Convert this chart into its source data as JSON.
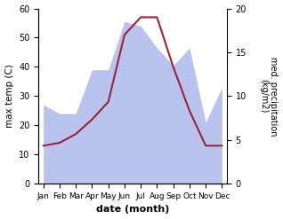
{
  "months": [
    "Jan",
    "Feb",
    "Mar",
    "Apr",
    "May",
    "Jun",
    "Jul",
    "Aug",
    "Sep",
    "Oct",
    "Nov",
    "Dec"
  ],
  "temperature": [
    13,
    14,
    17,
    22,
    28,
    51,
    57,
    57,
    40,
    25,
    13,
    13
  ],
  "precipitation_right": [
    9,
    8,
    8,
    13,
    13,
    18.5,
    18,
    15.5,
    13.5,
    15.5,
    7,
    11
  ],
  "temp_color": "#9b2335",
  "precip_color_fill": "#b8c4ee",
  "xlabel": "date (month)",
  "ylabel_left": "max temp (C)",
  "ylabel_right": "med. precipitation\n(kg/m2)",
  "ylim_left": [
    0,
    60
  ],
  "ylim_right": [
    0,
    20
  ],
  "yticks_left": [
    0,
    10,
    20,
    30,
    40,
    50,
    60
  ],
  "yticks_right": [
    0,
    5,
    10,
    15,
    20
  ],
  "scale_factor": 3.0
}
